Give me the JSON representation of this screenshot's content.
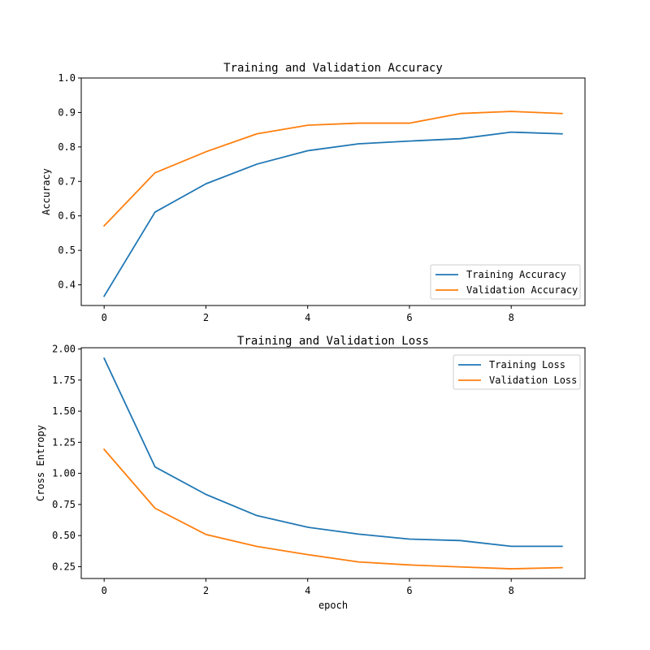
{
  "chart_data": [
    {
      "type": "line",
      "title": "Training and Validation Accuracy",
      "xlabel": "",
      "ylabel": "Accuracy",
      "x": [
        0,
        1,
        2,
        3,
        4,
        5,
        6,
        7,
        8,
        9
      ],
      "xlim": [
        -0.45,
        9.45
      ],
      "ylim": [
        0.34,
        1.0
      ],
      "xticks": [
        0,
        2,
        4,
        6,
        8
      ],
      "yticks": [
        0.4,
        0.5,
        0.6,
        0.7,
        0.8,
        0.9,
        1.0
      ],
      "ytick_labels": [
        "0.4",
        "0.5",
        "0.6",
        "0.7",
        "0.8",
        "0.9",
        "1.0"
      ],
      "legend_position": "lower-right",
      "grid": false,
      "series": [
        {
          "name": "Training Accuracy",
          "color": "#1f77b4",
          "values": [
            0.367,
            0.611,
            0.693,
            0.75,
            0.789,
            0.809,
            0.817,
            0.824,
            0.843,
            0.838
          ]
        },
        {
          "name": "Validation Accuracy",
          "color": "#ff7f0e",
          "values": [
            0.571,
            0.725,
            0.786,
            0.838,
            0.863,
            0.869,
            0.869,
            0.897,
            0.903,
            0.897
          ]
        }
      ]
    },
    {
      "type": "line",
      "title": "Training and Validation Loss",
      "xlabel": "epoch",
      "ylabel": "Cross Entropy",
      "x": [
        0,
        1,
        2,
        3,
        4,
        5,
        6,
        7,
        8,
        9
      ],
      "xlim": [
        -0.45,
        9.45
      ],
      "ylim": [
        0.155,
        2.01
      ],
      "xticks": [
        0,
        2,
        4,
        6,
        8
      ],
      "yticks": [
        0.25,
        0.5,
        0.75,
        1.0,
        1.25,
        1.5,
        1.75,
        2.0
      ],
      "ytick_labels": [
        "0.25",
        "0.50",
        "0.75",
        "1.00",
        "1.25",
        "1.50",
        "1.75",
        "2.00"
      ],
      "legend_position": "upper-right",
      "grid": false,
      "series": [
        {
          "name": "Training Loss",
          "color": "#1f77b4",
          "values": [
            1.925,
            1.052,
            0.831,
            0.661,
            0.567,
            0.512,
            0.472,
            0.46,
            0.414,
            0.414
          ]
        },
        {
          "name": "Validation Loss",
          "color": "#ff7f0e",
          "values": [
            1.193,
            0.72,
            0.509,
            0.413,
            0.347,
            0.288,
            0.264,
            0.248,
            0.233,
            0.242
          ]
        }
      ]
    }
  ]
}
